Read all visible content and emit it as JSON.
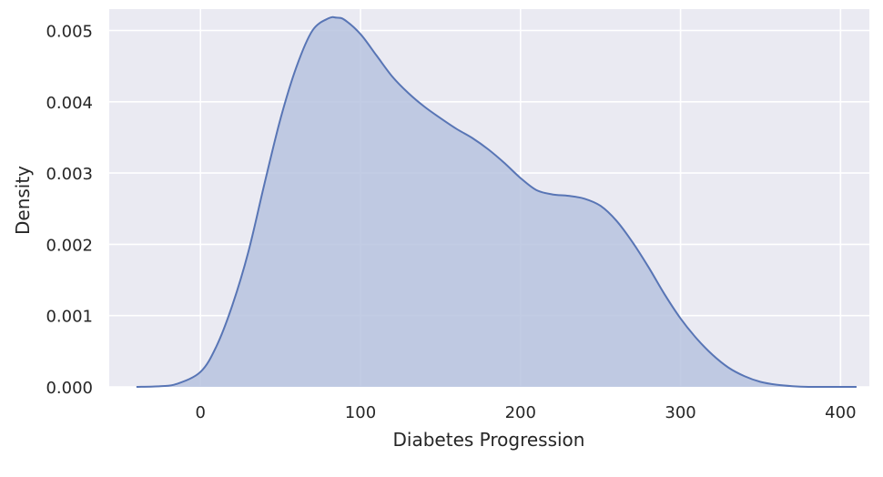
{
  "chart_data": {
    "type": "area",
    "title": "",
    "xlabel": "Diabetes Progression",
    "ylabel": "Density",
    "xlim": [
      -57,
      418
    ],
    "ylim": [
      0,
      0.0053
    ],
    "xticks": [
      0,
      100,
      200,
      300,
      400
    ],
    "xtick_labels": [
      "0",
      "100",
      "200",
      "300",
      "400"
    ],
    "yticks": [
      0.0,
      0.001,
      0.002,
      0.003,
      0.004,
      0.005
    ],
    "ytick_labels": [
      "0.000",
      "0.001",
      "0.002",
      "0.003",
      "0.004",
      "0.005"
    ],
    "grid": true,
    "colors": {
      "background": "#eaeaf2",
      "grid": "#ffffff",
      "line": "#5875b5",
      "fill": "#b7c3df"
    },
    "series": [
      {
        "x": [
          -40,
          -25,
          -15,
          0,
          10,
          20,
          30,
          40,
          50,
          60,
          70,
          80,
          85,
          90,
          100,
          110,
          120,
          130,
          140,
          150,
          160,
          170,
          180,
          190,
          200,
          210,
          220,
          230,
          240,
          250,
          260,
          270,
          280,
          290,
          300,
          310,
          320,
          330,
          340,
          350,
          360,
          370,
          380,
          390,
          410
        ],
        "y": [
          0.0,
          1e-05,
          4e-05,
          0.00021,
          0.00057,
          0.00115,
          0.0019,
          0.00285,
          0.00376,
          0.00449,
          0.005,
          0.00517,
          0.00518,
          0.00515,
          0.00495,
          0.00465,
          0.00435,
          0.00412,
          0.00393,
          0.00377,
          0.00362,
          0.00349,
          0.00333,
          0.00314,
          0.00293,
          0.00276,
          0.0027,
          0.00268,
          0.00264,
          0.00254,
          0.00233,
          0.00203,
          0.00168,
          0.0013,
          0.00096,
          0.00068,
          0.00045,
          0.00027,
          0.00015,
          7e-05,
          3e-05,
          1e-05,
          0.0,
          0.0,
          0.0
        ]
      }
    ]
  }
}
